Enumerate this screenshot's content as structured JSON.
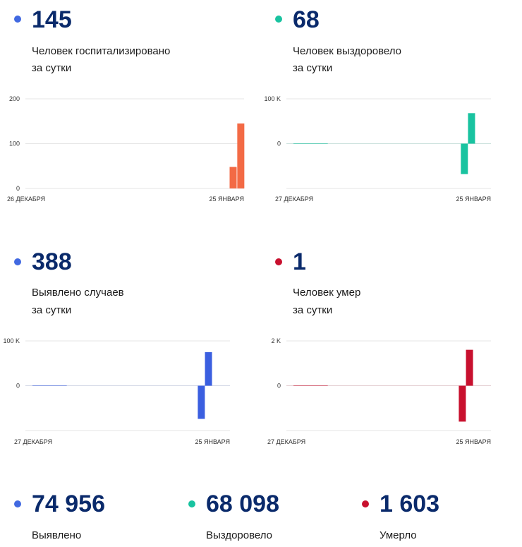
{
  "stats": [
    {
      "value": "145",
      "line1": "Человек госпитализировано",
      "line2": "за сутки",
      "color": "#4169e1"
    },
    {
      "value": "68",
      "line1": "Человек выздоровело",
      "line2": "за сутки",
      "color": "#19c3a0"
    },
    {
      "value": "388",
      "line1": "Выявлено случаев",
      "line2": "за сутки",
      "color": "#4169e1"
    },
    {
      "value": "1",
      "line1": "Человек умер",
      "line2": "за сутки",
      "color": "#c8102e"
    }
  ],
  "totals": [
    {
      "value": "74 956",
      "label": "Выявлено",
      "color": "#4169e1"
    },
    {
      "value": "68 098",
      "label": "Выздоровело",
      "color": "#19c3a0"
    },
    {
      "value": "1 603",
      "label": "Умерло",
      "color": "#c8102e"
    }
  ],
  "chart_data": [
    {
      "type": "bar",
      "color": "#f36a45",
      "ylim": [
        0,
        200
      ],
      "yticks": [
        {
          "value": 0,
          "label": "0"
        },
        {
          "value": 100,
          "label": "100"
        },
        {
          "value": 200,
          "label": "200"
        }
      ],
      "xlabels": [
        "26 ДЕКАБРЯ",
        "25 ЯНВАРЯ"
      ],
      "bars": [
        {
          "pos": 0.95,
          "value": 48
        },
        {
          "pos": 0.985,
          "value": 145
        }
      ]
    },
    {
      "type": "bar",
      "color": "#19c3a0",
      "ylim": [
        -100000,
        100000
      ],
      "yticks": [
        {
          "value": 0,
          "label": "0"
        },
        {
          "value": 100000,
          "label": "100 K"
        }
      ],
      "xlabels": [
        "27 ДЕКАБРЯ",
        "25 ЯНВАРЯ"
      ],
      "bars": [
        {
          "pos": 0.87,
          "value": -68000
        },
        {
          "pos": 0.905,
          "value": 68000
        }
      ]
    },
    {
      "type": "bar",
      "color": "#3b5fe0",
      "ylim": [
        -100000,
        100000
      ],
      "yticks": [
        {
          "value": 0,
          "label": "0"
        },
        {
          "value": 100000,
          "label": "100 K"
        }
      ],
      "xlabels": [
        "27 ДЕКАБРЯ",
        "25 ЯНВАРЯ"
      ],
      "bars": [
        {
          "pos": 0.86,
          "value": -74000
        },
        {
          "pos": 0.895,
          "value": 75000
        }
      ]
    },
    {
      "type": "bar",
      "color": "#c8102e",
      "ylim": [
        -2000,
        2000
      ],
      "yticks": [
        {
          "value": 0,
          "label": "0"
        },
        {
          "value": 2000,
          "label": "2 K"
        }
      ],
      "xlabels": [
        "27 ДЕКАБРЯ",
        "25 ЯНВАРЯ"
      ],
      "bars": [
        {
          "pos": 0.86,
          "value": -1602
        },
        {
          "pos": 0.895,
          "value": 1603
        }
      ]
    }
  ]
}
